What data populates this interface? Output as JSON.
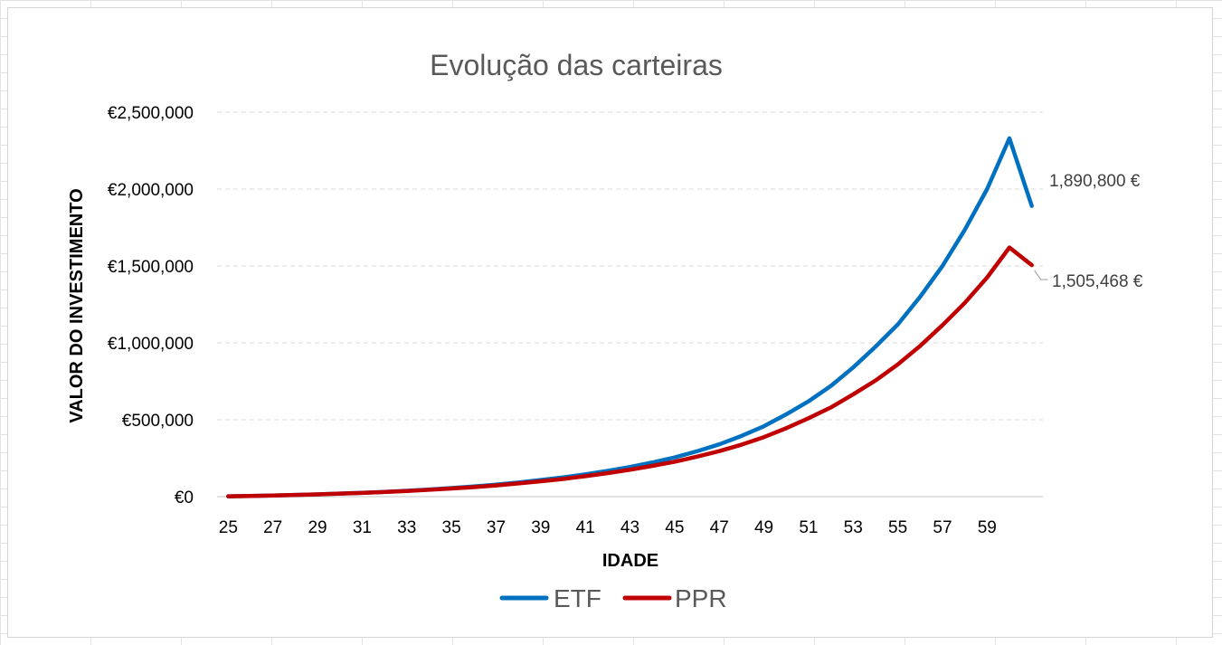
{
  "chart_data": {
    "type": "line",
    "title": "Evolução das carteiras",
    "xlabel": "IDADE",
    "ylabel": "VALOR DO INVESTIMENTO",
    "x": [
      25,
      26,
      27,
      28,
      29,
      30,
      31,
      32,
      33,
      34,
      35,
      36,
      37,
      38,
      39,
      40,
      41,
      42,
      43,
      44,
      45,
      46,
      47,
      48,
      49,
      50,
      51,
      52,
      53,
      54,
      55,
      56,
      57,
      58,
      59,
      60,
      61
    ],
    "x_tick_labels": [
      "25",
      "27",
      "29",
      "31",
      "33",
      "35",
      "37",
      "39",
      "41",
      "43",
      "45",
      "47",
      "49",
      "51",
      "53",
      "55",
      "57",
      "59"
    ],
    "ylim": [
      0,
      2500000
    ],
    "y_ticks": [
      0,
      500000,
      1000000,
      1500000,
      2000000,
      2500000
    ],
    "y_tick_labels": [
      "€0",
      "€500,000",
      "€1,000,000",
      "€1,500,000",
      "€2,000,000",
      "€2,500,000"
    ],
    "grid": true,
    "legend_position": "bottom",
    "series": [
      {
        "name": "ETF",
        "color": "#0070C0",
        "values": [
          2000,
          4500,
          7500,
          11000,
          15000,
          20000,
          25000,
          31000,
          38000,
          46000,
          56000,
          66000,
          78000,
          92000,
          108000,
          125000,
          145000,
          168000,
          193000,
          222000,
          255000,
          295000,
          340000,
          395000,
          458000,
          535000,
          620000,
          720000,
          840000,
          975000,
          1120000,
          1300000,
          1500000,
          1735000,
          2000000,
          2330000,
          1890800
        ],
        "end_label": "1,890,800 €"
      },
      {
        "name": "PPR",
        "color": "#C00000",
        "values": [
          2000,
          4500,
          7500,
          11000,
          15000,
          19500,
          24500,
          30000,
          37000,
          44500,
          53000,
          62000,
          73000,
          86000,
          100000,
          115000,
          133000,
          153000,
          175000,
          200000,
          227000,
          260000,
          296000,
          338000,
          387000,
          445000,
          510000,
          580000,
          665000,
          755000,
          860000,
          980000,
          1115000,
          1260000,
          1425000,
          1620000,
          1505468
        ],
        "end_label": "1,505,468 €"
      }
    ]
  }
}
